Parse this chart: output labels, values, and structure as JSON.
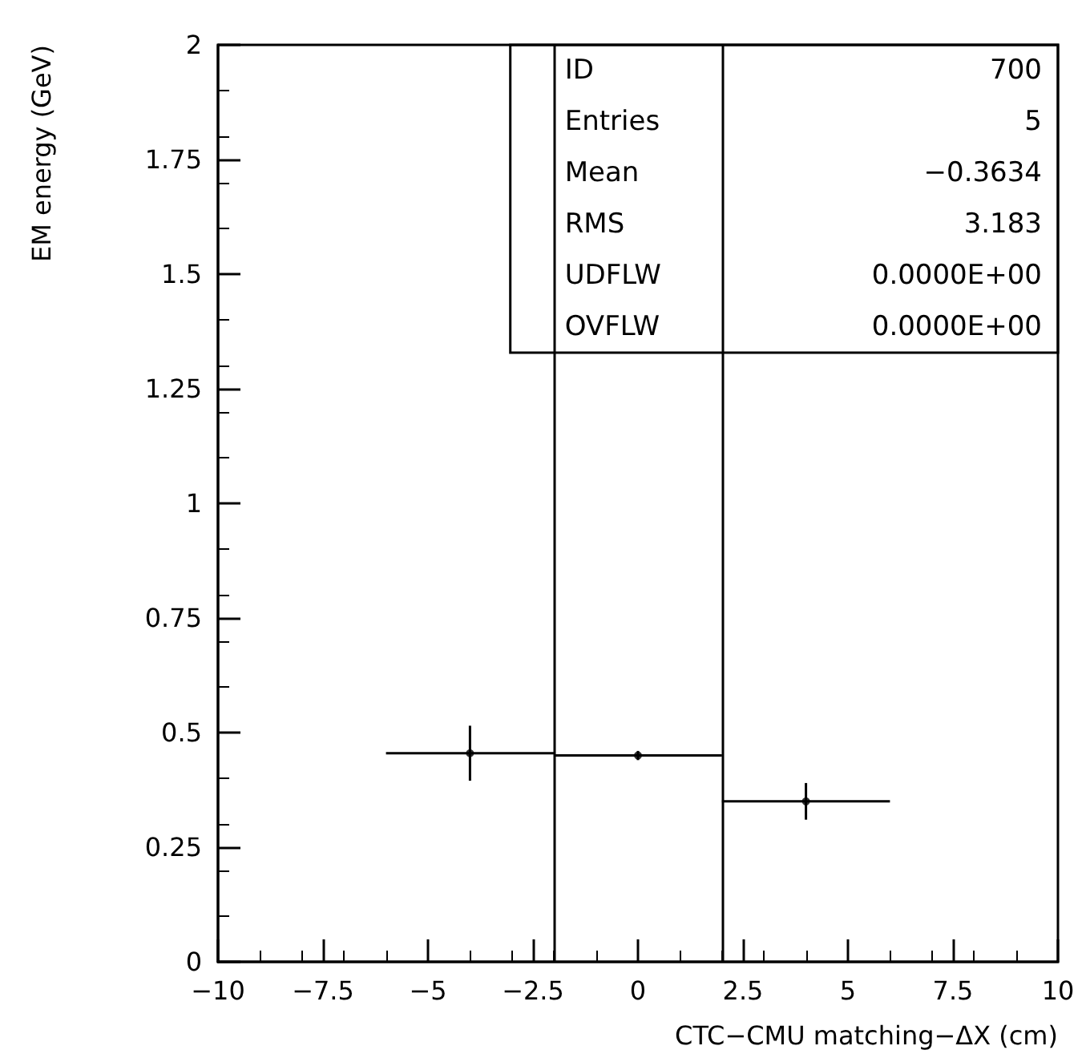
{
  "chart_data": {
    "type": "scatter",
    "xlabel": "CTC−CMU matching−ΔX (cm)",
    "ylabel": "EM energy (GeV)",
    "x": [
      -4,
      0,
      4
    ],
    "values": [
      0.455,
      0.45,
      0.35
    ],
    "errors": [
      0.06,
      0.01,
      0.04
    ],
    "xerrors": [
      2,
      2,
      2
    ],
    "color": "#000000",
    "xlim": [
      -10,
      10
    ],
    "xticks": [
      -10,
      -7.5,
      -5,
      -2.5,
      0,
      2.5,
      5,
      7.5,
      10
    ],
    "ylim": [
      0,
      2
    ],
    "yticks": [
      0,
      0.25,
      0.5,
      0.75,
      1,
      1.25,
      1.5,
      1.75,
      2
    ],
    "ref_lines": [
      {
        "axis": "x",
        "value": -2,
        "label": null
      },
      {
        "axis": "x",
        "value": 2,
        "label": null
      }
    ],
    "annotations": [
      "ID",
      "700",
      "Entries",
      "5",
      "Mean",
      "−0.3634",
      "RMS",
      "3.183",
      "UDFLW",
      "0.0000E+00",
      "OVFLW",
      "0.0000E+00"
    ],
    "grid": false
  }
}
